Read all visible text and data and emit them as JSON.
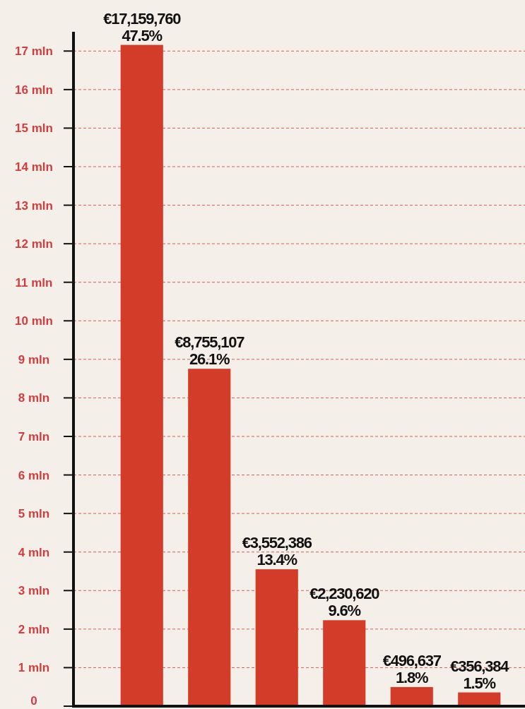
{
  "chart_data": {
    "type": "bar",
    "categories": [
      null,
      null,
      null,
      null,
      null,
      null
    ],
    "values": [
      17.15976,
      8.755107,
      3.552386,
      2.23062,
      0.496637,
      0.356384
    ],
    "color": "#d33c29",
    "annotations": [
      {
        "text": "€17,159,760\n47.5%",
        "y": 17.15976
      },
      {
        "text": "€8,755,107\n26.1%",
        "y": 8.755107
      },
      {
        "text": "€3,552,386\n13.4%",
        "y": 3.552386
      },
      {
        "text": "€2,230,620\n9.6%",
        "y": 2.23062
      },
      {
        "text": "€496,637\n1.8%",
        "y": 0.496637
      },
      {
        "text": "€356,384\n1.5%",
        "y": 0.356384
      }
    ],
    "ylim": [
      0,
      17.5
    ],
    "yticks": [
      0,
      {
        "value": 1,
        "label": "1 mln"
      },
      {
        "value": 2,
        "label": "2 mln"
      },
      {
        "value": 3,
        "label": "3 mln"
      },
      {
        "value": 4,
        "label": "4 mln"
      },
      {
        "value": 5,
        "label": "5 mln"
      },
      {
        "value": 6,
        "label": "6 mln"
      },
      {
        "value": 7,
        "label": "7 mln"
      },
      {
        "value": 8,
        "label": "8 mln"
      },
      {
        "value": 9,
        "label": "9 mln"
      },
      {
        "value": 10,
        "label": "10 mln"
      },
      {
        "value": 11,
        "label": "11 mln"
      },
      {
        "value": 12,
        "label": "12 mln"
      },
      {
        "value": 13,
        "label": "13 mln"
      },
      {
        "value": 14,
        "label": "14 mln"
      },
      {
        "value": 15,
        "label": "15 mln"
      },
      {
        "value": 16,
        "label": "16 mln"
      },
      {
        "value": 17,
        "label": "17 mln"
      }
    ],
    "grid": "y"
  }
}
